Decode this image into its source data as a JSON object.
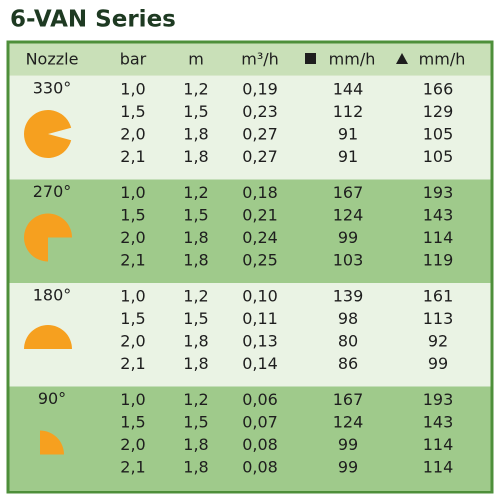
{
  "header": {
    "title": "6-VAN Series"
  },
  "table": {
    "columns": [
      "Nozzle",
      "bar",
      "m",
      "m³/h",
      "mm/h",
      "mm/h"
    ],
    "groups": [
      {
        "nozzle": "330°",
        "rows": [
          [
            "1,0",
            "1,2",
            "0,19",
            "144",
            "166"
          ],
          [
            "1,5",
            "1,5",
            "0,23",
            "112",
            "129"
          ],
          [
            "2,0",
            "1,8",
            "0,27",
            "91",
            "105"
          ],
          [
            "2,1",
            "1,8",
            "0,27",
            "91",
            "105"
          ]
        ]
      },
      {
        "nozzle": "270°",
        "rows": [
          [
            "1,0",
            "1,2",
            "0,18",
            "167",
            "193"
          ],
          [
            "1,5",
            "1,5",
            "0,21",
            "124",
            "143"
          ],
          [
            "2,0",
            "1,8",
            "0,24",
            "99",
            "114"
          ],
          [
            "2,1",
            "1,8",
            "0,25",
            "103",
            "119"
          ]
        ]
      },
      {
        "nozzle": "180°",
        "rows": [
          [
            "1,0",
            "1,2",
            "0,10",
            "139",
            "161"
          ],
          [
            "1,5",
            "1,5",
            "0,11",
            "98",
            "113"
          ],
          [
            "2,0",
            "1,8",
            "0,13",
            "80",
            "92"
          ],
          [
            "2,1",
            "1,8",
            "0,14",
            "86",
            "99"
          ]
        ]
      },
      {
        "nozzle": "90°",
        "rows": [
          [
            "1,0",
            "1,2",
            "0,06",
            "167",
            "193"
          ],
          [
            "1,5",
            "1,5",
            "0,07",
            "124",
            "143"
          ],
          [
            "2,0",
            "1,8",
            "0,08",
            "99",
            "114"
          ],
          [
            "2,1",
            "1,8",
            "0,08",
            "99",
            "114"
          ]
        ]
      }
    ]
  }
}
